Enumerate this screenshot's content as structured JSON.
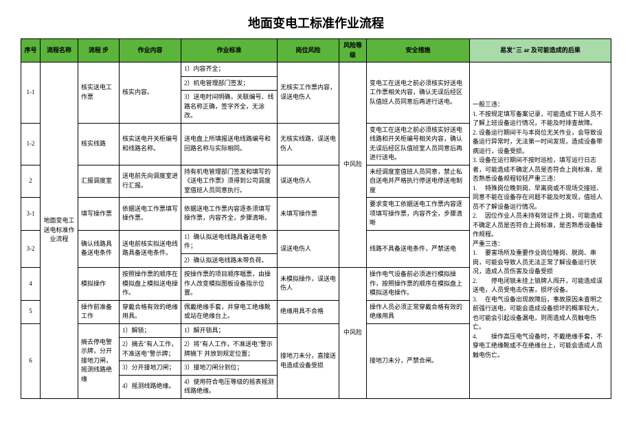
{
  "title": "地面变电工标准作业流程",
  "headers": {
    "seq": "序号",
    "name": "流程名称",
    "step": "流程\n步",
    "content": "作业内容",
    "standard": "作业标准",
    "risk": "岗位风险",
    "level": "风险等级",
    "measure": "安全措施",
    "result": "易发\"三 ar 及可能造成的后果"
  },
  "rows": {
    "r1_seq": "1-1",
    "r1_name": "地面变电工送电标准作业流程",
    "r1_step": "核实送电工作票",
    "r1_content": "核实内容。",
    "r1_std1": "1）内容齐全；",
    "r1_std2": "2）机电管理部门签发；",
    "r1_std3": "3）送电时间明确，关联编号、线路名称正确，签字齐全，无涂改。",
    "r1_risk": "无核实工作票内容，误送电伤人",
    "r1_level": "中风险",
    "r1_measure": "变电工在送电之前必须核实好送电工作票相关内容，确认无误后经区队值班人员同意后再进行送电。",
    "r2_seq": "1-2",
    "r2_step": "核实线路",
    "r2_content": "核实送电开关柜编号和线路名称。",
    "r2_std": "送电盘上所填报送电线路编号和回路名称与实际相同。",
    "r2_risk": "无核实线路，误送电伤人",
    "r2_measure": "变电工在送电之前必须核实好送电线路和开关柜编号相关内容，确认无误后经区队值班室人员同意后再进行送电。",
    "r3_seq": "2",
    "r3_step": "汇报调度室",
    "r3_content": "送电前先向调度室进行汇报。",
    "r3_std": "持有机电管理部门签发和填写的《送电工作票》须得到公司调度室值班人员同意执行。",
    "r3_risk": "误送电伤人",
    "r3_measure": "未经调度室值班人员同意，禁止私自送电并严格执行停送电停送电制度",
    "r4_seq": "3-1",
    "r4_step": "填写操作票",
    "r4_content": "依据送电工作票填写操作票。",
    "r4_std": "依据送电工作票内容逐条须填写操作票，内容齐全，步骤清晰。",
    "r4_risk": "未填写操作票",
    "r4_measure": "要求变电工依据送电工作票内容逐项填写操作票，内容齐全，步骤清晰",
    "r5_seq": "3-2",
    "r5_step": "确认线路具备送电条件",
    "r5_content": "送电前核实拟送电线路具备送电条件。",
    "r5_std1": "1）确认拟送电线路具备送电条件；",
    "r5_std2": "2）确认拟送电线路未带负荷。",
    "r5_risk": "误送电伤人",
    "r5_measure": "线路不具备送电条件，严禁送电",
    "r6_seq": "4",
    "r6_step": "模拟操作",
    "r6_content": "按照操作票的顺序在模拟盘上模拟送电操作。",
    "r6_std": "按操作票的项目顺序唱票，由操作人改变模拟图板设备指示位置。",
    "r6_risk": "未模拟操作，误送电伤人",
    "r6_measure": "操作电气设备前必须进行模拟操作，按照操作票的顺序在模拟盘上模拟送电操作。",
    "r7_seq": "5",
    "r7_step": "操作前准备工作",
    "r7_content": "穿戴合格有效的绝缘用具。",
    "r7_std": "佩戴绝缘手套，并穿电工绝缘靴或站在绝缘台上。",
    "r7_risk": "绝缘用具不合格",
    "r7_level": "中风险",
    "r7_measure": "操作人员必须正常穿戴合格有效的绝缘用具",
    "r8_seq": "6",
    "r8_step": "摘去停电警示牌，分开接地刀闸，摇测线路绝缘",
    "r8_c1": "1）解锁；",
    "r8_s1": "1）解开锁具；",
    "r8_c2": "2）摘去\"有人工作，不准送电\"警示牌；",
    "r8_s2": "2）将\"有人工作，不准送电\"警示牌摘下 并放到规定位置；",
    "r8_c3": "3）分开接地刀闸；",
    "r8_s3": "3）接地刀闸分到位；",
    "r8_c4": "4）摇测线路绝缘。",
    "r8_s4": "4）使用符合电压等级的摇表摇测线路绝缘。",
    "r8_risk": "接地刀未分，直接送电造成设备受损",
    "r8_measure": "接地刀未分，严禁合闸。",
    "result_txt": "一般三违：\n1. 不按规定填写备案记录，可能造成下班人员不了解上班设备运行情况，不能及时排查故障。\n2. 设备运行期间干与本岗位无关作业，会导致设备运行异常时，无法第一时间发现，造成设备带病运行，设备受损。\n3. 设备在运行期间不按时巡检，填写运行日志者，可能造成不确定人员是否符合上岗标准，是否熟悉设备规程较轻严重三违：\n1. 　特殊岗位晚到岗、早离岗或不现场交接班、同意不能在设备存在问题不能及时发现，值班人员不了解设备运行情况。\n2. 　因位作业人员未持有效证件上岗，可能造成不确定人员是否符合上岗标准，是否熟悉设备操作规程。\n严重三违：\n1. 　要害场所及重要作业岗位睡岗、脱岗、串岗，可能会导致人员无法正常了解设备运行状况，造成人员伤害及设备受损\n2. 　　停电闭锁未挂上锁牌人闯开，可能造成误送电，人员受电击伤害，损坏设备。\n3. 　在电气设备出现故障后，事故原因未查明之前强行送电，可能会造成设备损坏的概率较大，也可能会引起设备漏电，则而造成人员触电伤亡。\n4. 　　操作高压电气设备时，不戴绝缘手套，不穿电工绝缘靴或不在绝缘台上，可能会造成人员触电伤亡。"
  }
}
